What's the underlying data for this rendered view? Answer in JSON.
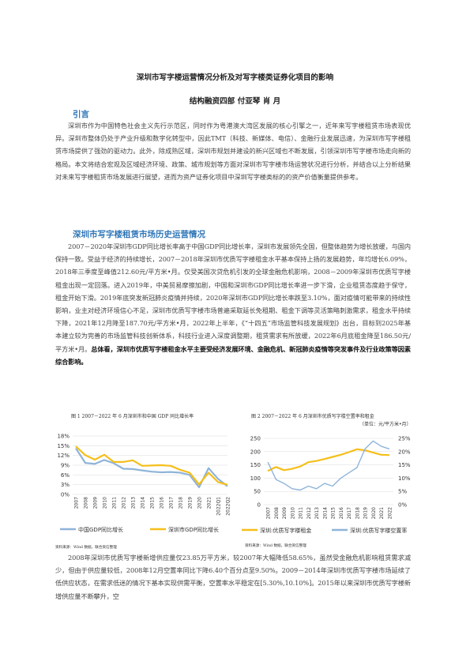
{
  "title": "深圳市写字楼运营情况分析及对写字楼类证券化项目的影响",
  "authors": "结构融资四部    付亚琴  肖  月",
  "intro_heading": "引言",
  "intro_paragraph": "深圳市作为中国特色社会主义先行示范区，同时作为粤港澳大湾区发展的核心引擎之一，近年来写字楼租赁市场表现优异。深圳市整体仍处于产业升级和数字化转型中，因此TMT（科技、新媒体、电信）、金融行业发展迅速，为深圳市写字楼租赁市场提供了强劲的驱动力。此外，除成熟区域，深圳市规划并建设的新兴区域也不断发展，引领深圳市写字楼市场走向新的格局。本文将结合宏观及区域经济环境、政策、城市规划等方面对深圳市写字楼市场运营状况进行分析，并结合以上分析结果对未来写字楼租赁市场发展进行展望，进而为资产证券化项目中深圳写字楼类标的的资产价值衡量提供参考。",
  "section_heading": "深圳市写字楼租赁市场历史运营情况",
  "section_paragraph_plain": "2007－2020年深圳市GDP同比增长率高于中国GDP同比增长率，深圳市发展领先全国，但整体趋势为增长放缓，与国内保持一致。受益于经济的持续增长，2007－2018年深圳市优质写字楼租金水平基本保持上扬的发展趋势，年均增长6.09%，2018年三季度至峰值212.60元/平方米•月。仅受美国次贷危机引发的全球金融危机影响，2008－2009年深圳市优质写字楼租金出现一定回落。进入2019年，中美贸易摩擦加剧，中国和深圳市GDP同比增长率进一步下滑，企业租赁态度趋于保守，租金开始下滑。2019年底突发新冠肺炎疫情并持续，2020年深圳市GDP同比增长率跌至3.10%，面对疫情可能带来的持续性影响，业主对经济环境信心不足，深圳市优质写字楼市场普遍采取延长免租期、租金下调等灵活策略刺激需求，租金水平持续下降，2021年12月降至187.70元/平方米•月，2022年上半年，《“十四五”市场监管科技发展规划》出台，目标到2025年基本建立较为完善的市场监管科技创新体系，科技行业进入深度调整期，租赁需求有所放缓，2022年6月底租金降至186.50元/平方米•月。",
  "section_paragraph_bold": "总体看，深圳市优质写字楼租金水平主要受经济发展环境、金融危机、新冠肺炎疫情等突发事件及行业政策等因素综合影响。",
  "closing_paragraph": "2008年深圳市优质写字楼新增供应量仅23.85万平方米，较2007年大幅降低58.65%，虽然受金融危机影响租赁需求减少，但由于供应量较低，2008年12月空置率同比下降6.40个百分点至9.50%。2009－2014年深圳市优质写字楼市场延续了低供应状态，在需求低迷的情况下基本实现供需平衡，空置率水平稳定在[5.30%,10.10%]。2015年以来深圳市优质写字楼新增供应量不断攀升，空",
  "figure1": {
    "caption": "图 1   2007－2022 年 6 月深圳市和中国 GDP 同比增长率",
    "source": "资料来源：Wind 数据，联合资信整理"
  },
  "figure2": {
    "caption": "图 2   2007－2022 年 6 月深圳市优质写字楼空置率和租金",
    "unit": "（单位：元/平方米•月）",
    "source": "资料来源：Wind 数据，联合资信整理"
  },
  "chart_data": [
    {
      "type": "line",
      "categories": [
        "2007",
        "2008",
        "2009",
        "2010",
        "2011",
        "2012",
        "2013",
        "2014",
        "2015",
        "2016",
        "2017",
        "2018",
        "2019",
        "2020",
        "2021",
        "2022Q1",
        "2022Q2"
      ],
      "series": [
        {
          "name": "中国GDP同比增长",
          "color": "#8fb4d9",
          "values": [
            14.2,
            9.7,
            9.4,
            10.6,
            9.6,
            7.9,
            7.8,
            7.4,
            7.0,
            6.8,
            6.9,
            6.7,
            6.0,
            2.2,
            8.1,
            4.8,
            2.5
          ]
        },
        {
          "name": "深圳市GDP同比增长",
          "color": "#f5bf1a",
          "values": [
            14.8,
            12.1,
            10.7,
            12.2,
            10.0,
            10.0,
            10.5,
            8.8,
            8.9,
            9.0,
            8.8,
            7.6,
            6.7,
            3.1,
            6.7,
            3.8,
            3.0
          ]
        }
      ],
      "yticks": [
        "0%",
        "3%",
        "6%",
        "9%",
        "12%",
        "15%",
        "18%"
      ],
      "ylim": [
        0,
        18
      ]
    },
    {
      "type": "line",
      "categories": [
        "2007",
        "2008",
        "2009",
        "2010",
        "2011",
        "2012",
        "2013",
        "2014",
        "2015",
        "2016",
        "2017",
        "2018",
        "2019",
        "2020",
        "2021",
        "2022"
      ],
      "series": [
        {
          "name": "深圳:优质写字楼租金",
          "color": "#f5bf1a",
          "axis": "left",
          "values": [
            127,
            142,
            130,
            135,
            144,
            160,
            165,
            172,
            180,
            188,
            198,
            209,
            205,
            196,
            188,
            187
          ]
        },
        {
          "name": "深圳:优质写字楼空置率",
          "color": "#8fb4d9",
          "axis": "right",
          "values": [
            16,
            9.5,
            8,
            6,
            5.5,
            7,
            6,
            8,
            7,
            10,
            12,
            14,
            21,
            24,
            22,
            21
          ]
        }
      ],
      "yticks_left": [
        "0",
        "50",
        "100",
        "150",
        "200",
        "250"
      ],
      "yticks_right": [
        "0%",
        "5%",
        "10%",
        "15%",
        "20%",
        "25%"
      ],
      "ylim_left": [
        0,
        250
      ],
      "ylim_right": [
        0,
        25
      ]
    }
  ]
}
